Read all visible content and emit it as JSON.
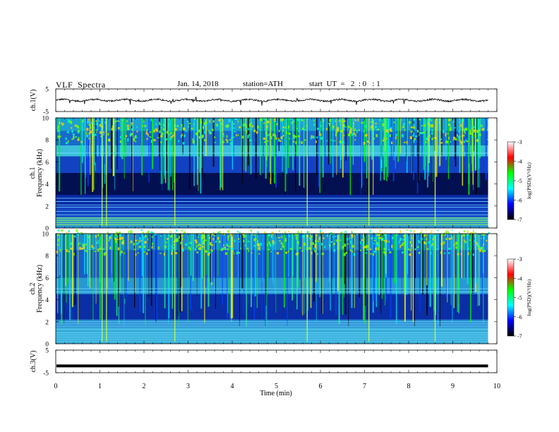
{
  "header": {
    "title": "VLF  Spectra",
    "date": "Jan. 14, 2018",
    "station": "station=ATH",
    "start": "start  UT  =   2  : 0   : 1"
  },
  "chart_data": {
    "type": "heatmap",
    "x_axis": {
      "label": "Time  (min)",
      "range": [
        0,
        10
      ],
      "ticks": [
        "0",
        "1",
        "2",
        "3",
        "4",
        "5",
        "6",
        "7",
        "8",
        "9",
        "10"
      ]
    },
    "panels": [
      {
        "id": "ch1-waveform",
        "ylabel": "ch.1(V)",
        "yrange": [
          -5,
          5
        ],
        "ticks": [
          "5",
          "-5"
        ],
        "type": "line"
      },
      {
        "id": "ch1-spectrogram",
        "ylabel": "Frequency  (kHz)",
        "channel_label": "ch.1",
        "yrange": [
          0,
          10
        ],
        "ticks": [
          "0",
          "2",
          "4",
          "6",
          "8",
          "10"
        ],
        "type": "heatmap",
        "colorbar": {
          "label": "log(PSD)(V²/Hz)",
          "range": [
            -7,
            -3
          ],
          "ticks": [
            "-3",
            "-4",
            "-5",
            "-6",
            "-7"
          ]
        }
      },
      {
        "id": "ch2-spectrogram",
        "ylabel": "Frequency  (kHz)",
        "channel_label": "ch.2",
        "yrange": [
          0,
          10
        ],
        "ticks": [
          "0",
          "2",
          "4",
          "6",
          "8",
          "10"
        ],
        "type": "heatmap",
        "colorbar": {
          "label": "log(PSD)(V²/Hz)",
          "range": [
            -7,
            -3
          ],
          "ticks": [
            "-3",
            "-4",
            "-5",
            "-6",
            "-7"
          ]
        }
      },
      {
        "id": "ch3-waveform",
        "ylabel": "ch.3(V)",
        "yrange": [
          -5,
          5
        ],
        "ticks": [
          "5",
          "-5"
        ],
        "type": "line",
        "level": -2
      }
    ],
    "data_end_min": 9.8,
    "colorscale": [
      "#000000",
      "#0000ff",
      "#00ffff",
      "#00ff00",
      "#ff0000",
      "#ffffff"
    ]
  }
}
